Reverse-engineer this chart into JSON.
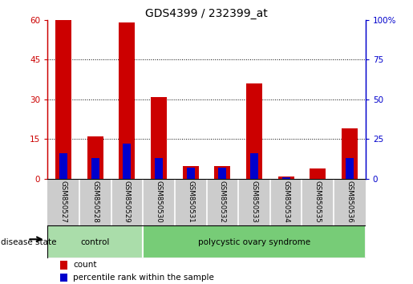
{
  "title": "GDS4399 / 232399_at",
  "samples": [
    "GSM850527",
    "GSM850528",
    "GSM850529",
    "GSM850530",
    "GSM850531",
    "GSM850532",
    "GSM850533",
    "GSM850534",
    "GSM850535",
    "GSM850536"
  ],
  "count_values": [
    60,
    16,
    59,
    31,
    5,
    5,
    36,
    1,
    4,
    19
  ],
  "percentile_values": [
    16,
    13,
    22,
    13,
    7,
    7,
    16,
    1,
    0,
    13
  ],
  "left_ylim": [
    0,
    60
  ],
  "right_ylim": [
    0,
    100
  ],
  "left_yticks": [
    0,
    15,
    30,
    45,
    60
  ],
  "right_yticks": [
    0,
    25,
    50,
    75,
    100
  ],
  "left_ytick_labels": [
    "0",
    "15",
    "30",
    "45",
    "60"
  ],
  "right_ytick_labels": [
    "0",
    "25",
    "50",
    "75",
    "100%"
  ],
  "bar_color": "#cc0000",
  "percentile_color": "#0000cc",
  "bar_width": 0.5,
  "percentile_bar_width": 0.25,
  "groups": [
    {
      "label": "control",
      "n_samples": 3,
      "color": "#aaddaa"
    },
    {
      "label": "polycystic ovary syndrome",
      "n_samples": 7,
      "color": "#77cc77"
    }
  ],
  "disease_state_label": "disease state",
  "legend_count_label": "count",
  "legend_percentile_label": "percentile rank within the sample",
  "bg_color": "#ffffff",
  "left_axis_color": "#cc0000",
  "right_axis_color": "#0000cc",
  "title_fontsize": 10,
  "tick_fontsize": 7.5,
  "label_fontsize": 8
}
